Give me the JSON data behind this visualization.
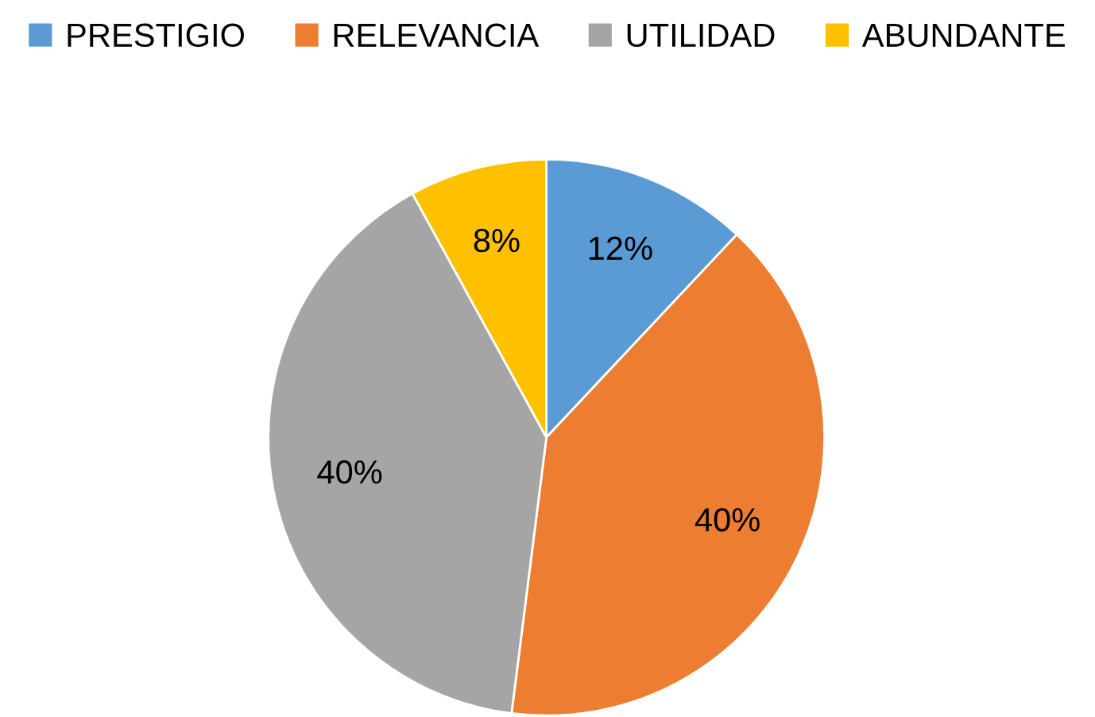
{
  "chart_data": {
    "type": "pie",
    "categories": [
      "PRESTIGIO",
      "RELEVANCIA",
      "UTILIDAD",
      "ABUNDANTE"
    ],
    "values": [
      12,
      40,
      40,
      8
    ],
    "colors": [
      "#5b9bd5",
      "#ed7d31",
      "#a5a5a5",
      "#ffc000"
    ],
    "value_labels": [
      "12%",
      "40%",
      "40%",
      "8%"
    ],
    "legend": "top"
  }
}
